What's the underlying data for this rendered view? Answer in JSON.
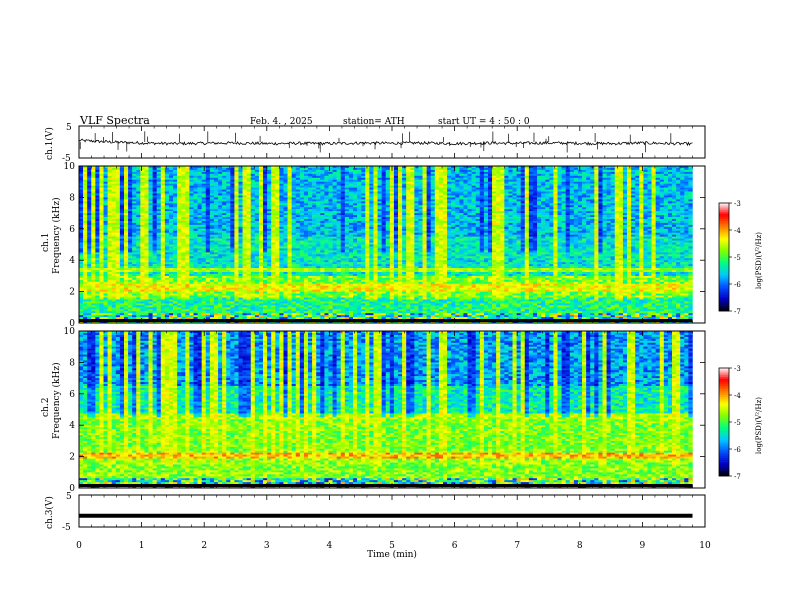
{
  "header": {
    "title": "VLF  Spectra",
    "date": "Feb. 4. , 2025",
    "station": "station= ATH",
    "start_ut": "start  UT  =   4 : 50 : 0"
  },
  "chart_data": [
    {
      "type": "line",
      "name": "ch1-waveform",
      "ylabel": "ch.1(V)",
      "ylim": [
        -5,
        5
      ],
      "y_ticks": [
        "5",
        "-5"
      ],
      "xlim": [
        0,
        10
      ],
      "x": [
        0,
        0.5,
        1,
        1.5,
        2,
        2.5,
        3,
        3.5,
        4,
        4.5,
        5,
        5.5,
        6,
        6.5,
        7,
        7.5,
        8,
        8.5,
        9,
        9.5,
        9.8
      ],
      "y": [
        0.5,
        0,
        -0.3,
        -0.5,
        -0.4,
        -0.3,
        -0.5,
        -0.4,
        -0.5,
        -0.3,
        -0.4,
        -0.3,
        -0.5,
        -0.3,
        -0.4,
        -0.3,
        -0.4,
        -0.5,
        -0.3,
        -0.5,
        -0.6
      ]
    },
    {
      "type": "heatmap",
      "name": "ch2-spectrogram",
      "ylabel_line1": "ch.1",
      "ylabel_line2": "Frequency  (kHz)",
      "ylim": [
        0,
        10
      ],
      "y_ticks": [
        "0",
        "2",
        "4",
        "6",
        "8",
        "10"
      ],
      "xlim": [
        0,
        9.8
      ],
      "colorbar_label": "log(PSD)(V²/Hz)",
      "colorbar_ticks": [
        "-3",
        "-4",
        "-5",
        "-6",
        "-7"
      ],
      "colorbar_range": [
        -7,
        -3
      ]
    },
    {
      "type": "heatmap",
      "name": "ch3-spectrogram",
      "ylabel_line1": "ch.2",
      "ylabel_line2": "Frequency  (kHz)",
      "ylim": [
        0,
        10
      ],
      "y_ticks": [
        "0",
        "2",
        "4",
        "6",
        "8",
        "10"
      ],
      "xlim": [
        0,
        9.8
      ],
      "colorbar_label": "log(PSD)(V²/Hz)",
      "colorbar_ticks": [
        "-3",
        "-4",
        "-5",
        "-6",
        "-7"
      ],
      "colorbar_range": [
        -7,
        -3
      ]
    },
    {
      "type": "line",
      "name": "ch3-waveform",
      "ylabel": "ch.3(V)",
      "ylim": [
        -5,
        5
      ],
      "y_ticks": [
        "5",
        "-5"
      ],
      "xlim": [
        0,
        10
      ],
      "x": [
        0,
        9.8
      ],
      "y": [
        -1.5,
        -1.5
      ]
    }
  ],
  "x_axis": {
    "label": "Time  (min)",
    "ticks": [
      "0",
      "1",
      "2",
      "3",
      "4",
      "5",
      "6",
      "7",
      "8",
      "9",
      "10"
    ]
  },
  "colors": {
    "colormap": [
      "#000000",
      "#0000c8",
      "#0050ff",
      "#00c8ff",
      "#00ff80",
      "#80ff00",
      "#ffff00",
      "#ff8000",
      "#ff0000",
      "#ffffff"
    ]
  }
}
